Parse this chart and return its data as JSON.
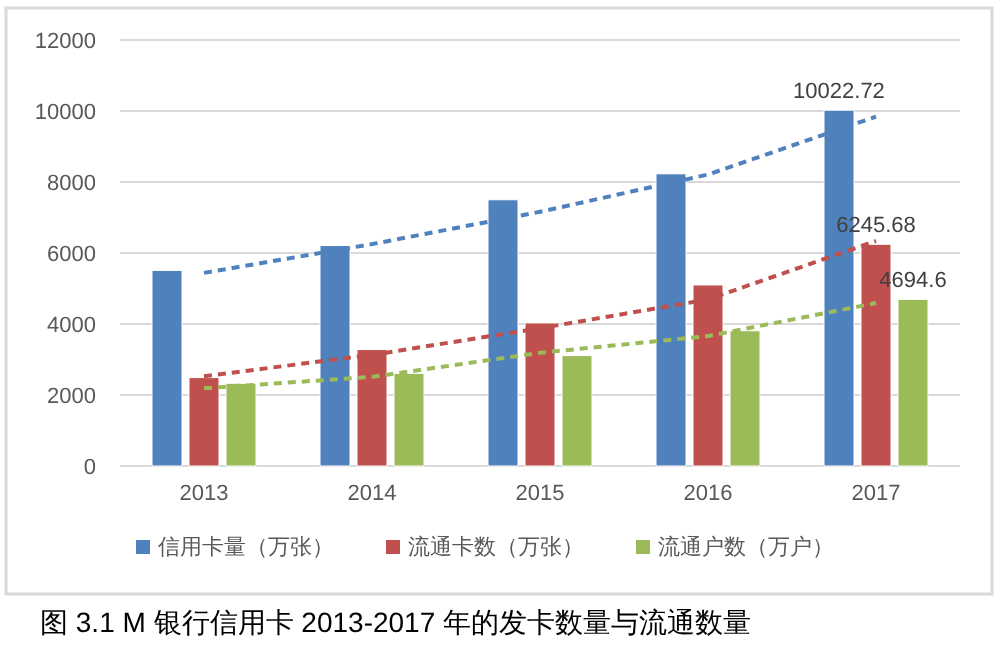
{
  "chart_data": {
    "type": "bar",
    "title": "图 3.1 M 银行信用卡 2013-2017 年的发卡数量与流通数量",
    "categories": [
      "2013",
      "2014",
      "2015",
      "2016",
      "2017"
    ],
    "ylim": [
      0,
      12000
    ],
    "yticks": [
      0,
      2000,
      4000,
      6000,
      8000,
      10000,
      12000
    ],
    "grid": "y",
    "legend": "bottom",
    "series": [
      {
        "name": "信用卡量（万张）",
        "color": "#4f81bd",
        "values": [
          5510,
          6210,
          7500,
          8230,
          10022.72
        ],
        "value_labels": [
          null,
          null,
          null,
          null,
          "10022.72"
        ]
      },
      {
        "name": "流通卡数（万张）",
        "color": "#c0504d",
        "values": [
          2490,
          3280,
          4030,
          5100,
          6245.68
        ],
        "value_labels": [
          null,
          null,
          null,
          null,
          "6245.68"
        ]
      },
      {
        "name": "流通户数（万户）",
        "color": "#9bbb59",
        "values": [
          2330,
          2610,
          3110,
          3810,
          4694.6
        ],
        "value_labels": [
          null,
          null,
          null,
          null,
          "4694.6"
        ]
      },
      {
        "type": "line",
        "line_style": "dashed",
        "color": "#4f81bd",
        "values": [
          5440,
          6250,
          7160,
          8210,
          9840
        ]
      },
      {
        "type": "line",
        "line_style": "dashed",
        "color": "#c0504d",
        "values": [
          2530,
          3130,
          3880,
          4690,
          6340
        ]
      },
      {
        "type": "line",
        "line_style": "dashed",
        "color": "#9bbb59",
        "values": [
          2190,
          2510,
          3190,
          3660,
          4590
        ]
      }
    ]
  }
}
